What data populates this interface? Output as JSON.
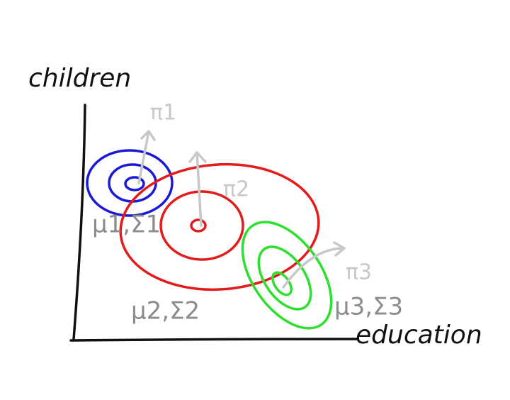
{
  "axes": {
    "y_label": "children",
    "x_label": "education"
  },
  "components": [
    {
      "params": "μ1,Σ1",
      "weight": "π1"
    },
    {
      "params": "μ2,Σ2",
      "weight": "π2"
    },
    {
      "params": "μ3,Σ3",
      "weight": "π3"
    }
  ]
}
